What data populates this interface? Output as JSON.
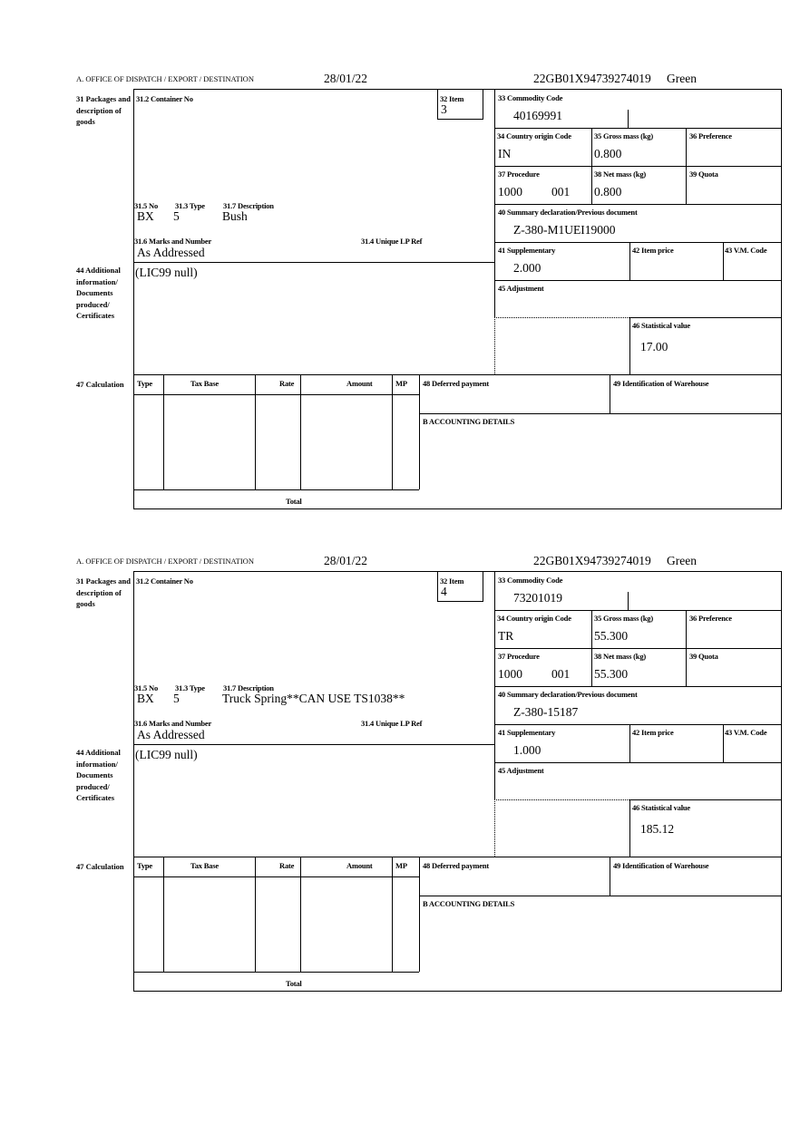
{
  "labels": {
    "office": "A. OFFICE OF DISPATCH / EXPORT / DESTINATION",
    "box31": "31 Packages and description of goods",
    "box31_2": "31.2 Container No",
    "box32": "32 Item",
    "box31_5": "31.5 No",
    "box31_3": "31.3 Type",
    "box31_7": "31.7 Description",
    "box31_6": "31.6 Marks and Number",
    "box31_4": "31.4 Unique LP Ref",
    "box33": "33 Commodity Code",
    "box34": "34 Country origin Code",
    "box35": "35 Gross mass (kg)",
    "box36": "36 Preference",
    "box37": "37 Procedure",
    "box38": "38 Net mass (kg)",
    "box39": "39 Quota",
    "box40": "40 Summary declaration/Previous document",
    "box41": "41 Supplementary",
    "box42": "42 Item price",
    "box43": "43 V.M. Code",
    "box44": "44 Additional information/ Documents produced/ Certificates",
    "box45": "45 Adjustment",
    "box46": "46 Statistical value",
    "box47": "47 Calculation",
    "col_type": "Type",
    "col_tax_base": "Tax Base",
    "col_rate": "Rate",
    "col_amount": "Amount",
    "col_mp": "MP",
    "total": "Total",
    "box48": "48 Deferred payment",
    "box49": "49 Identification of Warehouse",
    "accounting": "B ACCOUNTING DETAILS"
  },
  "forms": [
    {
      "date": "28/01/22",
      "reference": "22GB01X94739274019",
      "route": "Green",
      "item": "3",
      "no": "BX",
      "type": "5",
      "description": "Bush",
      "marks": "As Addressed",
      "commodity_code": "40169991",
      "country_origin": "IN",
      "gross_mass": "0.800",
      "procedure": "1000",
      "procedure_additional": "001",
      "net_mass": "0.800",
      "previous_document": "Z-380-M1UEI19000",
      "supplementary": "2.000",
      "additional_info": "(LIC99 null)",
      "statistical_value": "17.00"
    },
    {
      "date": "28/01/22",
      "reference": "22GB01X94739274019",
      "route": "Green",
      "item": "4",
      "no": "BX",
      "type": "5",
      "description": "Truck Spring**CAN USE TS1038**",
      "marks": "As Addressed",
      "commodity_code": "73201019",
      "country_origin": "TR",
      "gross_mass": "55.300",
      "procedure": "1000",
      "procedure_additional": "001",
      "net_mass": "55.300",
      "previous_document": "Z-380-15187",
      "supplementary": "1.000",
      "additional_info": "(LIC99 null)",
      "statistical_value": "185.12"
    }
  ]
}
